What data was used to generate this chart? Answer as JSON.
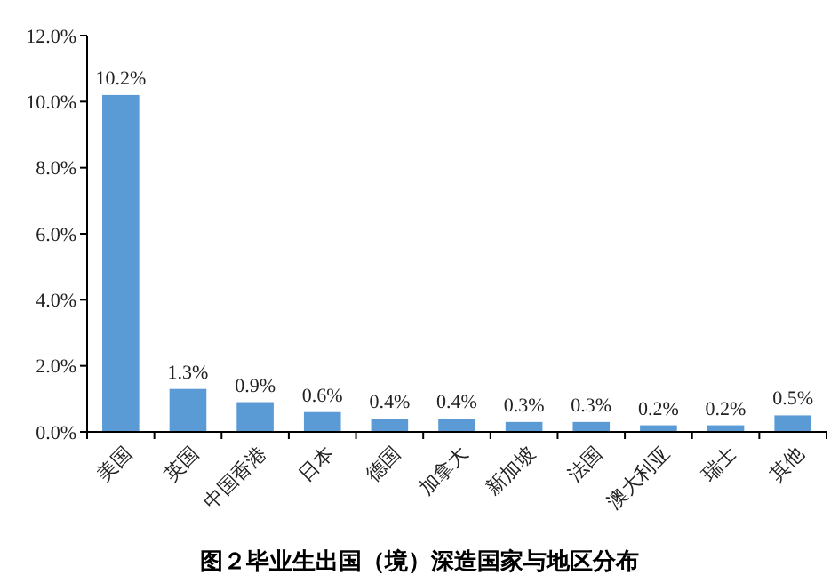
{
  "chart_data": {
    "type": "bar",
    "title": "图２毕业生出国（境）深造国家与地区分布",
    "categories": [
      "美国",
      "英国",
      "中国香港",
      "日本",
      "德国",
      "加拿大",
      "新加坡",
      "法国",
      "澳大利亚",
      "瑞士",
      "其他"
    ],
    "values": [
      10.2,
      1.3,
      0.9,
      0.6,
      0.4,
      0.4,
      0.3,
      0.3,
      0.2,
      0.2,
      0.5
    ],
    "value_labels": [
      "10.2%",
      "1.3%",
      "0.9%",
      "0.6%",
      "0.4%",
      "0.4%",
      "0.3%",
      "0.3%",
      "0.2%",
      "0.2%",
      "0.5%"
    ],
    "color": "#5b9bd5",
    "ylim": [
      0,
      12
    ],
    "yticks": [
      {
        "value": 0,
        "label": "0.0%"
      },
      {
        "value": 2,
        "label": "2.0%"
      },
      {
        "value": 4,
        "label": "4.0%"
      },
      {
        "value": 6,
        "label": "6.0%"
      },
      {
        "value": 8,
        "label": "8.0%"
      },
      {
        "value": 10,
        "label": "10.0%"
      },
      {
        "value": 12,
        "label": "12.0%"
      }
    ],
    "grid": false
  }
}
